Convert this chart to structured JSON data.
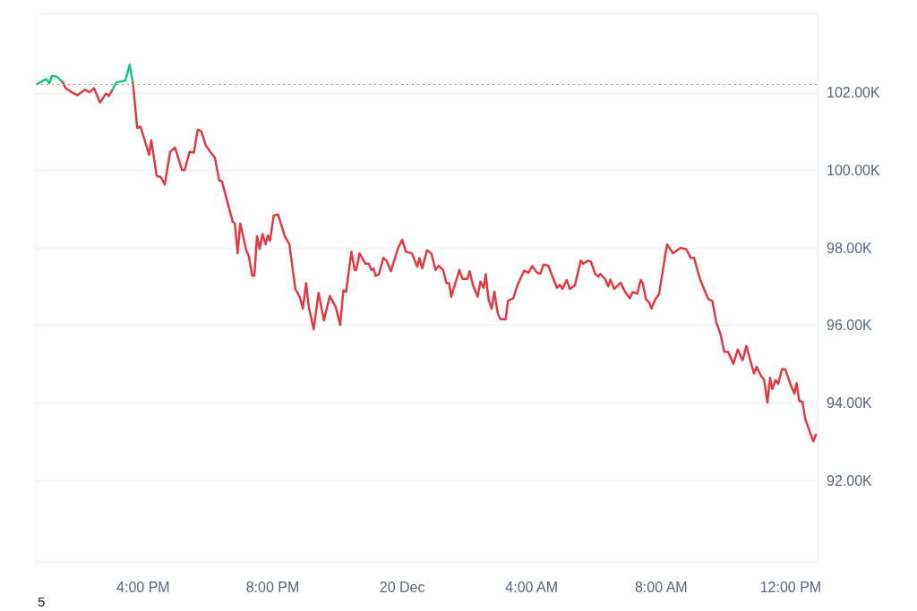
{
  "chart_data": {
    "type": "line",
    "xlim": [
      "--12-19T12:41",
      "--12-20T12:50"
    ],
    "xticks": [
      {
        "value": "--12-19T16:00",
        "label": "4:00 PM"
      },
      {
        "value": "--12-19T20:00",
        "label": "8:00 PM"
      },
      {
        "value": "--12-20T00:00",
        "label": "20 Dec"
      },
      {
        "value": "--12-20T04:00",
        "label": "4:00 AM"
      },
      {
        "value": "--12-20T08:00",
        "label": "8:00 AM"
      },
      {
        "value": "--12-20T12:00",
        "label": "12:00 PM"
      }
    ],
    "ylim": [
      89.9,
      104.05
    ],
    "yticks": [
      {
        "value": 92,
        "label": "92.00K"
      },
      {
        "value": 94,
        "label": "94.00K"
      },
      {
        "value": 96,
        "label": "96.00K"
      },
      {
        "value": 98,
        "label": "98.00K"
      },
      {
        "value": 100,
        "label": "100.00K"
      },
      {
        "value": 102,
        "label": "102.00K"
      }
    ],
    "grid": "y",
    "ref_lines": [
      {
        "axis": "y",
        "value": 102.23,
        "color": "#999999",
        "line_style": "dotted"
      }
    ],
    "annotations": [
      "5"
    ],
    "series": [
      {
        "color": "#16c784",
        "x": [
          "--12-19T12:44",
          "--12-19T13:00",
          "--12-19T13:06",
          "--12-19T13:11",
          "--12-19T13:20",
          "--12-19T13:31"
        ],
        "values": [
          102.23,
          102.36,
          102.25,
          102.44,
          102.42,
          102.27
        ]
      },
      {
        "color": "#16c784",
        "x": [
          "--12-19T15:02",
          "--12-19T15:10",
          "--12-19T15:27",
          "--12-19T15:35",
          "--12-19T15:41"
        ],
        "values": [
          102.05,
          102.27,
          102.32,
          102.73,
          102.25
        ]
      },
      {
        "color": "#e03a45",
        "x": [
          "--12-19T13:31",
          "--12-19T13:36",
          "--12-19T13:47",
          "--12-19T13:58",
          "--12-19T14:12",
          "--12-19T14:20",
          "--12-19T14:29",
          "--12-19T14:40",
          "--12-19T14:51",
          "--12-19T14:56",
          "--12-19T15:02",
          "--12-19T15:10",
          "--12-19T15:27",
          "--12-19T15:35",
          "--12-19T15:41",
          "--12-19T15:49",
          "--12-19T15:55",
          "--12-19T16:11",
          "--12-19T16:15",
          "--12-19T16:25",
          "--12-19T16:33",
          "--12-19T16:40",
          "--12-19T16:50",
          "--12-19T16:59",
          "--12-19T17:12",
          "--12-19T17:17",
          "--12-19T17:26",
          "--12-19T17:34",
          "--12-19T17:41",
          "--12-19T17:48",
          "--12-19T17:56",
          "--12-19T18:13",
          "--12-19T18:21",
          "--12-19T18:26",
          "--12-19T18:46",
          "--12-19T18:50",
          "--12-19T18:55",
          "--12-19T19:00",
          "--12-19T19:11",
          "--12-19T19:16",
          "--12-19T19:22",
          "--12-19T19:26",
          "--12-19T19:31",
          "--12-19T19:36",
          "--12-19T19:41",
          "--12-19T19:47",
          "--12-19T19:51",
          "--12-19T19:55",
          "--12-19T20:02",
          "--12-19T20:10",
          "--12-19T20:23",
          "--12-19T20:31",
          "--12-19T20:42",
          "--12-19T20:50",
          "--12-19T20:56",
          "--12-19T21:02",
          "--12-19T21:07",
          "--12-19T21:16",
          "--12-19T21:25",
          "--12-19T21:35",
          "--12-19T21:46",
          "--12-19T21:57",
          "--12-19T22:05",
          "--12-19T22:11",
          "--12-19T22:16",
          "--12-19T22:26",
          "--12-19T22:32",
          "--12-19T22:35",
          "--12-19T22:41",
          "--12-19T22:52",
          "--12-19T22:58",
          "--12-19T23:03",
          "--12-19T23:07",
          "--12-19T23:11",
          "--12-19T23:17",
          "--12-19T23:25",
          "--12-19T23:31",
          "--12-19T23:39",
          "--12-19T23:53",
          "--12-20T00:00",
          "--12-20T00:07",
          "--12-20T00:18",
          "--12-20T00:28",
          "--12-20T00:32",
          "--12-20T00:37",
          "--12-20T00:46",
          "--12-20T00:54",
          "--12-20T01:02",
          "--12-20T01:08",
          "--12-20T01:16",
          "--12-20T01:22",
          "--12-20T01:27",
          "--12-20T01:31",
          "--12-20T01:46",
          "--12-20T01:52",
          "--12-20T02:01",
          "--12-20T02:05",
          "--12-20T02:11",
          "--12-20T02:20",
          "--12-20T02:25",
          "--12-20T02:31",
          "--12-20T02:35",
          "--12-20T02:40",
          "--12-20T02:46",
          "--12-20T02:51",
          "--12-20T02:57",
          "--12-20T03:02",
          "--12-20T03:12",
          "--12-20T03:16",
          "--12-20T03:26",
          "--12-20T03:34",
          "--12-20T03:46",
          "--12-20T03:54",
          "--12-20T04:01",
          "--12-20T04:10",
          "--12-20T04:16",
          "--12-20T04:22",
          "--12-20T04:31",
          "--12-20T04:38",
          "--12-20T04:47",
          "--12-20T04:52",
          "--12-20T04:57",
          "--12-20T05:05",
          "--12-20T05:11",
          "--12-20T05:20",
          "--12-20T05:31",
          "--12-20T05:36",
          "--12-20T05:44",
          "--12-20T05:50",
          "--12-20T05:58",
          "--12-20T06:04",
          "--12-20T06:07",
          "--12-20T06:16",
          "--12-20T06:22",
          "--12-20T06:26",
          "--12-20T06:33",
          "--12-20T06:45",
          "--12-20T06:53",
          "--12-20T07:02",
          "--12-20T07:07",
          "--12-20T07:16",
          "--12-20T07:22",
          "--12-20T07:26",
          "--12-20T07:32",
          "--12-20T07:38",
          "--12-20T07:42",
          "--12-20T07:49",
          "--12-20T07:56",
          "--12-20T08:11",
          "--12-20T08:22",
          "--12-20T08:36",
          "--12-20T08:47",
          "--12-20T08:55",
          "--12-20T09:01",
          "--12-20T09:12",
          "--12-20T09:23",
          "--12-20T09:28",
          "--12-20T09:35",
          "--12-20T09:42",
          "--12-20T09:50",
          "--12-20T09:57",
          "--12-20T10:04",
          "--12-20T10:14",
          "--12-20T10:22",
          "--12-20T10:31",
          "--12-20T10:38",
          "--12-20T10:52",
          "--12-20T10:57",
          "--12-20T11:05",
          "--12-20T11:11",
          "--12-20T11:17",
          "--12-20T11:22",
          "--12-20T11:26",
          "--12-20T11:32",
          "--12-20T11:37",
          "--12-20T11:44",
          "--12-20T11:50",
          "--12-20T12:01",
          "--12-20T12:07",
          "--12-20T12:11",
          "--12-20T12:16",
          "--12-20T12:22",
          "--12-20T12:27",
          "--12-20T12:42",
          "--12-20T12:47"
        ],
        "values": [
          102.27,
          102.13,
          102.02,
          101.94,
          102.08,
          102.02,
          102.12,
          101.75,
          101.98,
          101.92,
          102.05,
          null,
          null,
          null,
          102.25,
          101.09,
          101.13,
          100.4,
          100.78,
          99.86,
          99.82,
          99.63,
          100.48,
          100.59,
          100.01,
          100.01,
          100.48,
          100.46,
          101.05,
          101.0,
          100.64,
          100.32,
          99.74,
          99.72,
          98.67,
          98.63,
          97.86,
          98.63,
          97.94,
          97.78,
          97.28,
          97.28,
          98.3,
          97.97,
          98.36,
          98.09,
          98.32,
          98.18,
          98.84,
          98.86,
          98.28,
          98.09,
          96.94,
          96.74,
          96.43,
          97.09,
          96.47,
          95.9,
          96.84,
          96.13,
          96.76,
          96.47,
          96.01,
          96.9,
          96.86,
          97.9,
          97.43,
          97.43,
          97.86,
          97.59,
          97.59,
          97.43,
          97.47,
          97.28,
          97.32,
          97.74,
          97.67,
          97.4,
          98.01,
          98.21,
          97.9,
          97.86,
          97.51,
          97.74,
          97.47,
          97.94,
          97.86,
          97.43,
          97.54,
          97.43,
          97.09,
          97.09,
          96.74,
          97.43,
          97.2,
          97.2,
          97.4,
          97.05,
          96.74,
          97.13,
          96.97,
          97.32,
          96.67,
          96.43,
          96.87,
          96.32,
          96.16,
          96.16,
          96.63,
          96.7,
          97.05,
          97.41,
          97.36,
          97.53,
          97.36,
          97.33,
          97.57,
          97.54,
          97.28,
          96.97,
          97.05,
          96.94,
          97.17,
          96.94,
          97.03,
          97.67,
          97.59,
          97.67,
          97.64,
          97.32,
          97.26,
          97.33,
          97.2,
          97.01,
          97.18,
          96.94,
          97.1,
          96.87,
          96.7,
          96.86,
          96.82,
          97.17,
          97.09,
          96.67,
          96.59,
          96.43,
          96.67,
          96.8,
          98.09,
          97.86,
          98.0,
          97.96,
          97.74,
          97.74,
          97.2,
          96.82,
          96.67,
          96.63,
          96.09,
          95.78,
          95.32,
          95.32,
          95.01,
          95.38,
          95.1,
          95.47,
          94.76,
          94.93,
          94.7,
          94.59,
          94.01,
          94.65,
          94.36,
          94.59,
          94.49,
          94.87,
          94.87,
          94.43,
          94.24,
          94.51,
          94.05,
          94.03,
          93.59,
          93.01,
          93.18
        ]
      }
    ]
  }
}
